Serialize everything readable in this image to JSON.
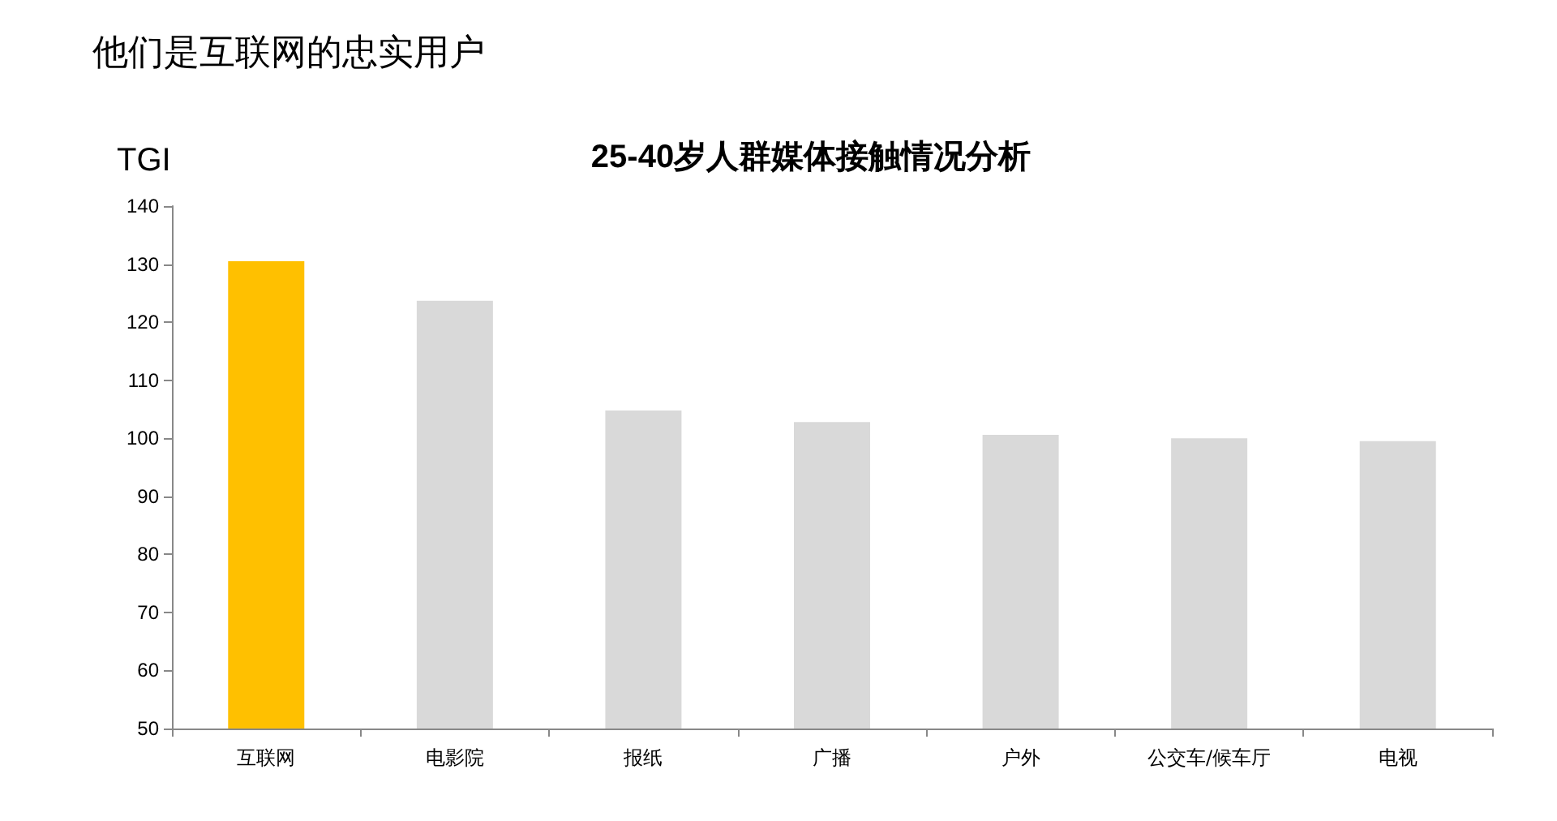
{
  "chart_data": {
    "type": "bar",
    "title": "他们是互联网的忠实用户",
    "subtitle": "25-40岁人群媒体接触情况分析",
    "ylabel": "TGI",
    "categories": [
      "互联网",
      "电影院",
      "报纸",
      "广播",
      "户外",
      "公交车/候车厅",
      "电视"
    ],
    "values": [
      130.5,
      123.7,
      104.8,
      102.8,
      100.6,
      100,
      99.5
    ],
    "colors": [
      "#ffc000",
      "#d9d9d9",
      "#d9d9d9",
      "#d9d9d9",
      "#d9d9d9",
      "#d9d9d9",
      "#d9d9d9"
    ],
    "ylim": [
      50,
      140
    ],
    "yticks": [
      50,
      60,
      70,
      80,
      90,
      100,
      110,
      120,
      130,
      140
    ]
  }
}
